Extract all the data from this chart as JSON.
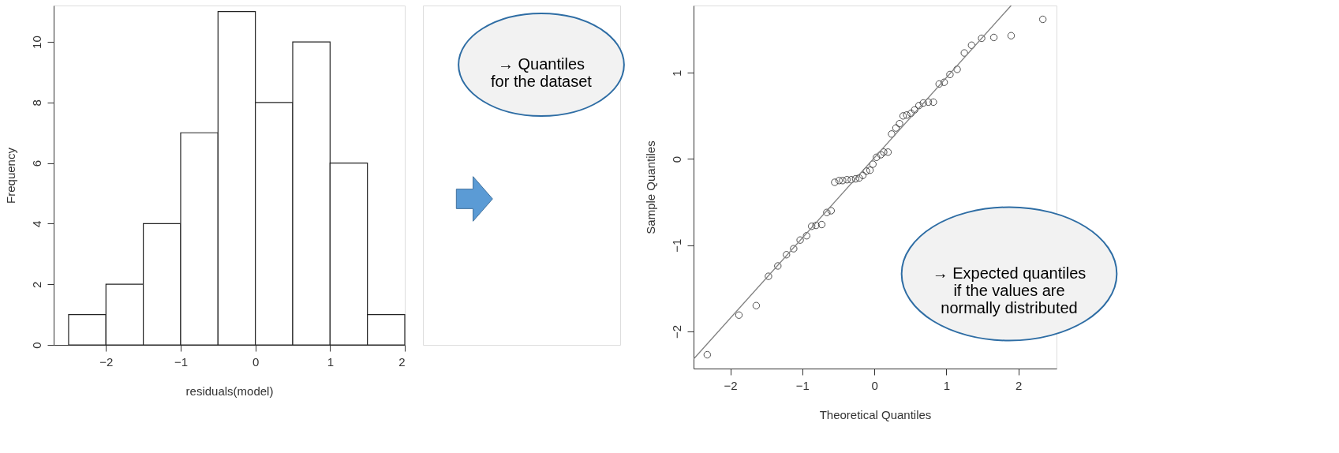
{
  "chart_data": [
    {
      "type": "histogram",
      "xlabel": "residuals(model)",
      "ylabel": "Frequency",
      "bins": [
        -2.5,
        -2.0,
        -1.5,
        -1.0,
        -0.5,
        0.0,
        0.5,
        1.0,
        1.5,
        2.0
      ],
      "values": [
        1,
        2,
        4,
        7,
        11,
        8,
        10,
        6,
        1
      ],
      "color": "#ffffff",
      "xlim": [
        -2.7,
        2.0
      ],
      "xticks": [
        -2,
        -1,
        0,
        1,
        2
      ],
      "ylim": [
        0,
        11.2
      ],
      "yticks": [
        0,
        2,
        4,
        6,
        8,
        10
      ],
      "grid": false
    },
    {
      "type": "scatter",
      "xlabel": "Theoretical Quantiles",
      "ylabel": "Sample Quantiles",
      "series": [
        {
          "type": "scatter",
          "color": "#000000",
          "marker": "circle",
          "x": [
            -2.32,
            -1.88,
            -1.64,
            -1.47,
            -1.34,
            -1.22,
            -1.12,
            -1.03,
            -0.94,
            -0.87,
            -0.81,
            -0.73,
            -0.66,
            -0.6,
            -0.55,
            -0.49,
            -0.44,
            -0.38,
            -0.32,
            -0.26,
            -0.21,
            -0.16,
            -0.11,
            -0.06,
            -0.02,
            0.03,
            0.09,
            0.13,
            0.19,
            0.24,
            0.3,
            0.35,
            0.4,
            0.45,
            0.51,
            0.56,
            0.62,
            0.68,
            0.75,
            0.82,
            0.9,
            0.97,
            1.05,
            1.15,
            1.25,
            1.35,
            1.49,
            1.66,
            1.9,
            2.34
          ],
          "values": [
            -2.27,
            -1.81,
            -1.7,
            -1.36,
            -1.24,
            -1.11,
            -1.04,
            -0.94,
            -0.89,
            -0.78,
            -0.77,
            -0.76,
            -0.62,
            -0.6,
            -0.27,
            -0.25,
            -0.25,
            -0.24,
            -0.24,
            -0.23,
            -0.22,
            -0.19,
            -0.14,
            -0.13,
            -0.06,
            0.02,
            0.05,
            0.08,
            0.08,
            0.29,
            0.36,
            0.41,
            0.5,
            0.51,
            0.53,
            0.57,
            0.62,
            0.65,
            0.66,
            0.66,
            0.87,
            0.89,
            0.98,
            1.04,
            1.23,
            1.32,
            1.4,
            1.41,
            1.43,
            1.62
          ]
        },
        {
          "type": "line",
          "color": "#808080",
          "x": [
            -2.51,
            1.9
          ],
          "values": [
            -2.32,
            1.78
          ]
        }
      ],
      "xlim": [
        -2.51,
        2.53
      ],
      "xticks": [
        -2,
        -1,
        0,
        1,
        2
      ],
      "ylim": [
        -2.43,
        1.78
      ],
      "yticks": [
        -2,
        -1,
        0,
        1
      ],
      "grid": false,
      "annotations": [
        "→ Quantiles\nfor the dataset",
        "→ Expected quantiles\nif the values are\nnormally distributed"
      ]
    }
  ]
}
